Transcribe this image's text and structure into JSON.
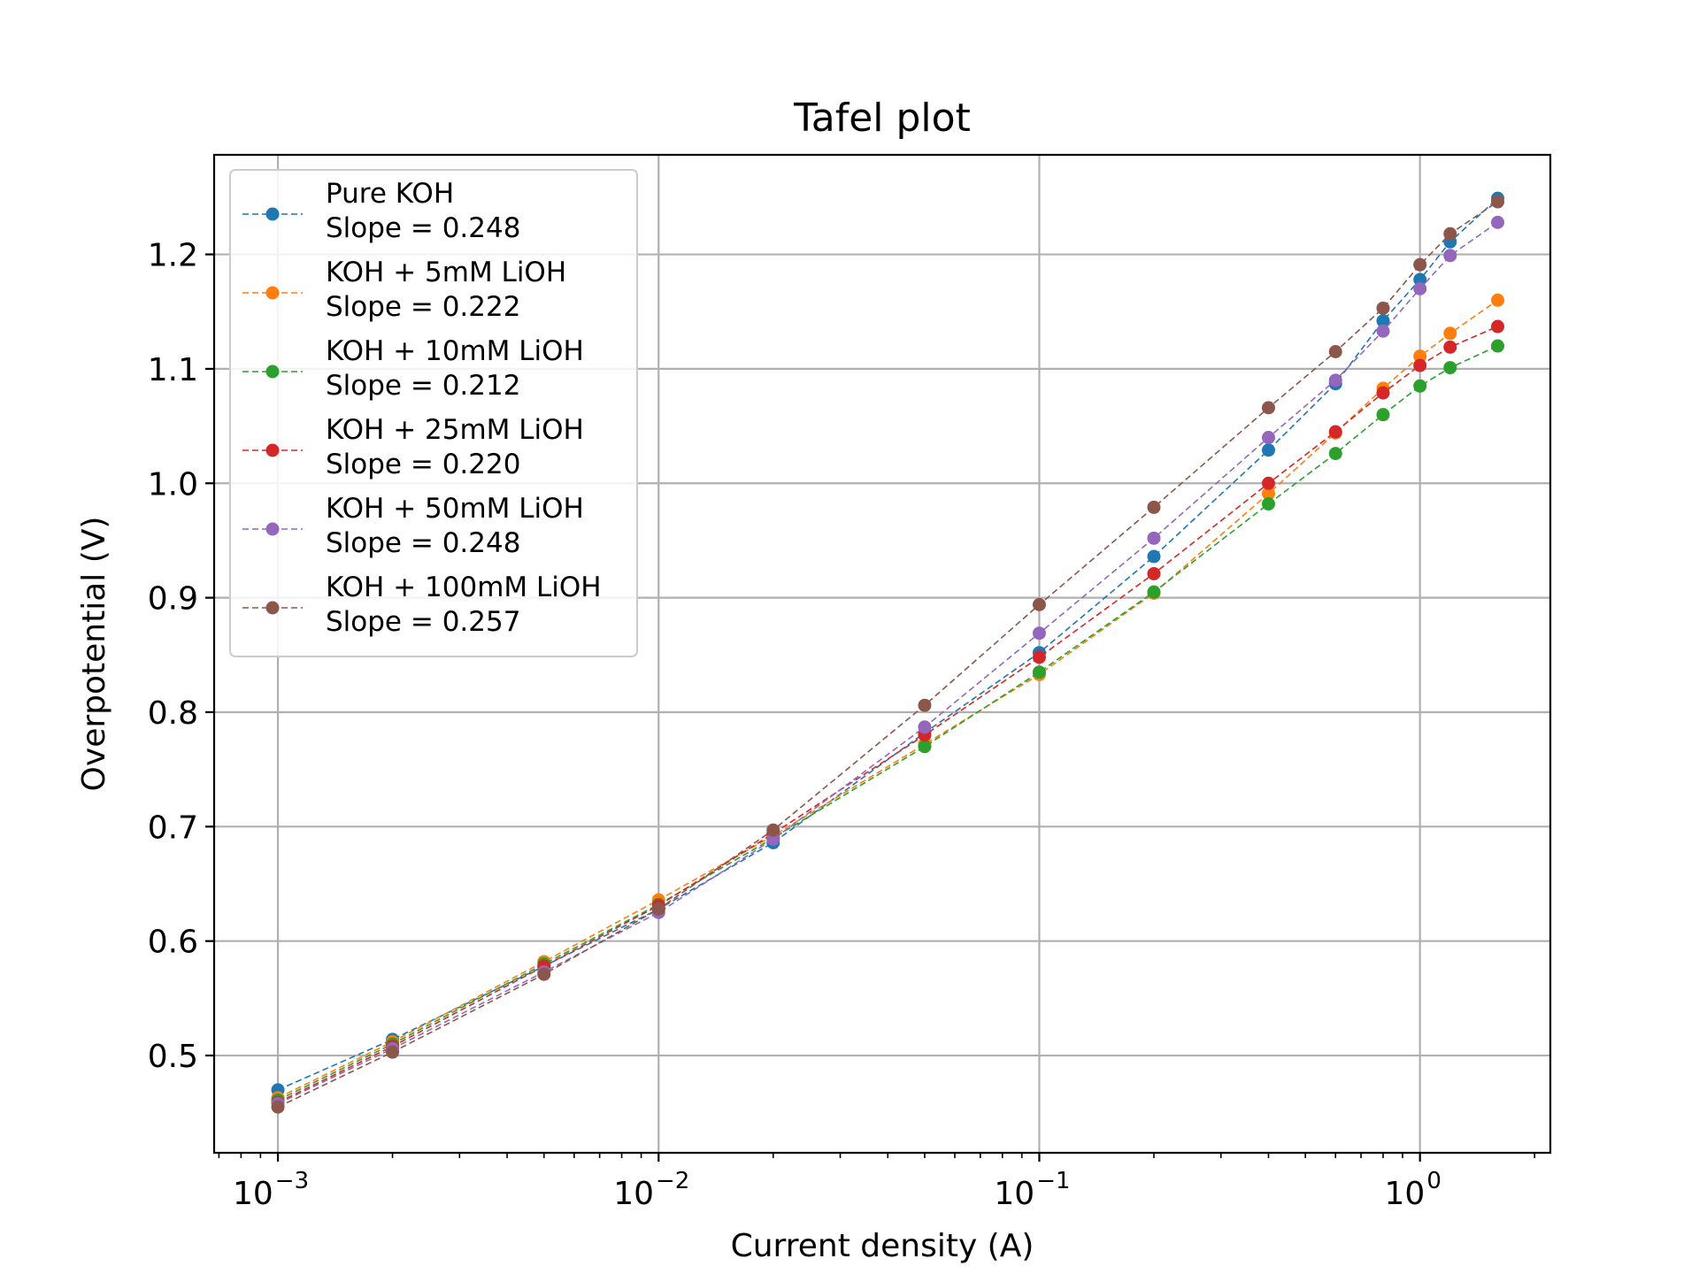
{
  "chart_data": {
    "type": "line",
    "title": "Tafel plot",
    "xlabel": "Current density (A)",
    "ylabel": "Overpotential (V)",
    "xscale": "log",
    "xlim": [
      0.00068,
      2.2
    ],
    "ylim": [
      0.415,
      1.287
    ],
    "grid": true,
    "legend_position": "top-left",
    "x_ticks": [
      {
        "base": "10",
        "exp": "−3",
        "value": 0.001
      },
      {
        "base": "10",
        "exp": "−2",
        "value": 0.01
      },
      {
        "base": "10",
        "exp": "−1",
        "value": 0.1
      },
      {
        "base": "10",
        "exp": "0",
        "value": 1
      }
    ],
    "y_ticks": [
      {
        "label": "0.5",
        "value": 0.5
      },
      {
        "label": "0.6",
        "value": 0.6
      },
      {
        "label": "0.7",
        "value": 0.7
      },
      {
        "label": "0.8",
        "value": 0.8
      },
      {
        "label": "0.9",
        "value": 0.9
      },
      {
        "label": "1.0",
        "value": 1.0
      },
      {
        "label": "1.1",
        "value": 1.1
      },
      {
        "label": "1.2",
        "value": 1.2
      }
    ],
    "x": [
      0.001,
      0.002,
      0.005,
      0.01,
      0.02,
      0.05,
      0.1,
      0.2,
      0.4,
      0.6,
      0.8,
      1.0,
      1.2,
      1.6
    ],
    "series": [
      {
        "name": "Pure KOH",
        "slope_label": "Slope = 0.248",
        "color": "#1f77b4",
        "values": [
          0.47,
          0.514,
          0.578,
          0.628,
          0.686,
          0.782,
          0.852,
          0.936,
          1.029,
          1.087,
          1.142,
          1.178,
          1.211,
          1.249
        ]
      },
      {
        "name": "KOH + 5mM LiOH",
        "slope_label": "Slope = 0.222",
        "color": "#ff7f0e",
        "values": [
          0.463,
          0.512,
          0.582,
          0.636,
          0.692,
          0.772,
          0.833,
          0.904,
          0.991,
          1.044,
          1.083,
          1.111,
          1.131,
          1.16
        ]
      },
      {
        "name": "KOH + 10mM LiOH",
        "slope_label": "Slope = 0.212",
        "color": "#2ca02c",
        "values": [
          0.461,
          0.51,
          0.58,
          0.632,
          0.69,
          0.77,
          0.835,
          0.905,
          0.982,
          1.026,
          1.06,
          1.085,
          1.101,
          1.12
        ]
      },
      {
        "name": "KOH + 25mM LiOH",
        "slope_label": "Slope = 0.220",
        "color": "#d62728",
        "values": [
          0.459,
          0.508,
          0.578,
          0.631,
          0.694,
          0.78,
          0.848,
          0.921,
          1.0,
          1.045,
          1.079,
          1.103,
          1.119,
          1.137
        ]
      },
      {
        "name": "KOH + 50mM LiOH",
        "slope_label": "Slope = 0.248",
        "color": "#9467bd",
        "values": [
          0.458,
          0.506,
          0.573,
          0.625,
          0.689,
          0.787,
          0.869,
          0.952,
          1.04,
          1.09,
          1.133,
          1.17,
          1.199,
          1.228
        ]
      },
      {
        "name": "KOH + 100mM LiOH",
        "slope_label": "Slope = 0.257",
        "color": "#8c564b",
        "values": [
          0.455,
          0.503,
          0.571,
          0.628,
          0.697,
          0.806,
          0.894,
          0.979,
          1.066,
          1.115,
          1.153,
          1.191,
          1.218,
          1.246
        ]
      }
    ]
  }
}
